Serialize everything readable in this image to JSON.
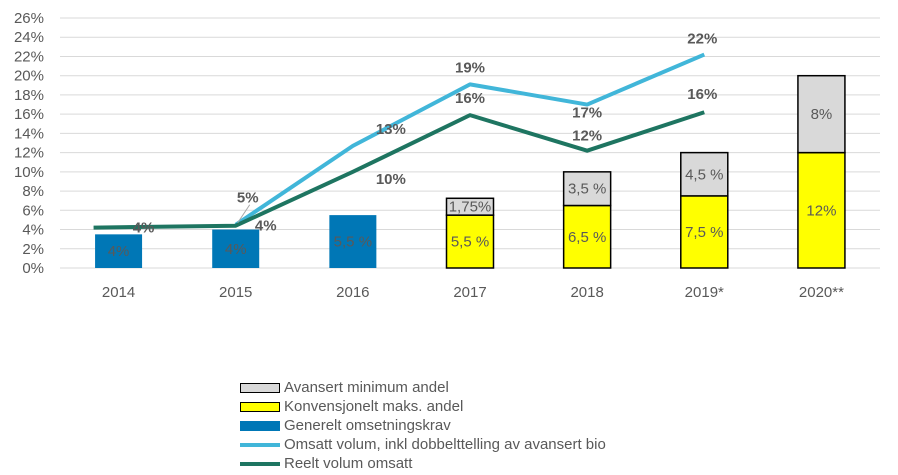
{
  "chart_data": {
    "type": "bar",
    "categories": [
      "2014",
      "2015",
      "2016",
      "2017",
      "2018",
      "2019*",
      "2020**"
    ],
    "ylim": [
      0,
      26
    ],
    "yticks": [
      "0%",
      "2%",
      "4%",
      "6%",
      "8%",
      "10%",
      "12%",
      "14%",
      "16%",
      "18%",
      "20%",
      "22%",
      "24%",
      "26%"
    ],
    "grid": true,
    "legend_position": "bottom",
    "series": [
      {
        "name": "Generelt omsetningskrav",
        "kind": "bar",
        "color": "#0077B6",
        "values": [
          3.5,
          4,
          5.5,
          null,
          null,
          null,
          null
        ],
        "labels": [
          "4%",
          "4%",
          "5,5 %",
          "",
          "",
          "",
          ""
        ]
      },
      {
        "name": "Konvensjonelt maks. andel",
        "kind": "stacked-bar",
        "color": "#FFFF00",
        "values": [
          null,
          null,
          null,
          5.5,
          6.5,
          7.5,
          12
        ],
        "labels": [
          "",
          "",
          "",
          "5,5 %",
          "6,5 %",
          "7,5 %",
          "12%"
        ]
      },
      {
        "name": "Avansert minimum andel",
        "kind": "stacked-bar",
        "color": "#D9D9D9",
        "values": [
          null,
          null,
          null,
          1.75,
          3.5,
          4.5,
          8
        ],
        "labels": [
          "",
          "",
          "",
          "1,75%",
          "3,5 %",
          "4,5 %",
          "8%"
        ]
      },
      {
        "name": "Omsatt volum, inkl dobbelttelling av avansert bio",
        "kind": "line",
        "color": "#41B6D9",
        "values": [
          null,
          4.5,
          12.7,
          19.1,
          17,
          22.2,
          null
        ],
        "labels": [
          "",
          "5%",
          "13%",
          "19%",
          "17%",
          "22%",
          ""
        ]
      },
      {
        "name": "Reelt volum omsatt",
        "kind": "line",
        "color": "#1E7561",
        "values": [
          4.2,
          4.4,
          10,
          15.9,
          12.2,
          16.2,
          null
        ],
        "labels": [
          "4%",
          "4%",
          "10%",
          "16%",
          "12%",
          "16%",
          ""
        ]
      }
    ],
    "legend": [
      {
        "label": "Avansert minimum andel",
        "type": "box",
        "color": "#D9D9D9"
      },
      {
        "label": "Konvensjonelt maks. andel",
        "type": "box",
        "color": "#FFFF00"
      },
      {
        "label": "Generelt omsetningskrav",
        "type": "solid",
        "color": "#0077B6"
      },
      {
        "label": "Omsatt volum, inkl dobbelttelling av avansert bio",
        "type": "line",
        "color": "#41B6D9"
      },
      {
        "label": "Reelt volum omsatt",
        "type": "line",
        "color": "#1E7561"
      }
    ]
  }
}
